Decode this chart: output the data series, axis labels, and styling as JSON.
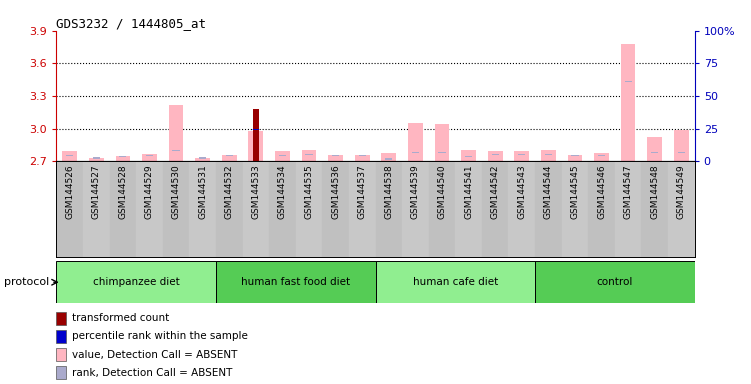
{
  "title": "GDS3232 / 1444805_at",
  "samples": [
    "GSM144526",
    "GSM144527",
    "GSM144528",
    "GSM144529",
    "GSM144530",
    "GSM144531",
    "GSM144532",
    "GSM144533",
    "GSM144534",
    "GSM144535",
    "GSM144536",
    "GSM144537",
    "GSM144538",
    "GSM144539",
    "GSM144540",
    "GSM144541",
    "GSM144542",
    "GSM144543",
    "GSM144544",
    "GSM144545",
    "GSM144546",
    "GSM144547",
    "GSM144548",
    "GSM144549"
  ],
  "pink_bar_values": [
    2.79,
    2.73,
    2.75,
    2.77,
    3.22,
    2.73,
    2.76,
    2.98,
    2.79,
    2.8,
    2.76,
    2.76,
    2.78,
    3.05,
    3.04,
    2.8,
    2.79,
    2.79,
    2.8,
    2.76,
    2.78,
    3.78,
    2.92,
    2.99
  ],
  "blue_rank_values": [
    2.745,
    2.725,
    2.735,
    2.745,
    2.795,
    2.725,
    2.745,
    2.985,
    2.745,
    2.755,
    2.745,
    2.745,
    2.715,
    2.775,
    2.775,
    2.735,
    2.755,
    2.755,
    2.755,
    2.745,
    2.745,
    3.425,
    2.775,
    2.775
  ],
  "red_bar_sample_idx": 7,
  "red_bar_value": 3.18,
  "blue_bar_value": 2.988,
  "groups": [
    {
      "label": "chimpanzee diet",
      "start": 0,
      "end": 6,
      "color": "#90EE90"
    },
    {
      "label": "human fast food diet",
      "start": 6,
      "end": 12,
      "color": "#55CC55"
    },
    {
      "label": "human cafe diet",
      "start": 12,
      "end": 18,
      "color": "#90EE90"
    },
    {
      "label": "control",
      "start": 18,
      "end": 24,
      "color": "#55CC55"
    }
  ],
  "ylim_left": [
    2.7,
    3.9
  ],
  "ylim_right": [
    0,
    100
  ],
  "yticks_left": [
    2.7,
    3.0,
    3.3,
    3.6,
    3.9
  ],
  "yticks_right": [
    0,
    25,
    50,
    75,
    100
  ],
  "grid_values": [
    3.0,
    3.3,
    3.6
  ],
  "left_color": "#CC0000",
  "right_color": "#0000BB",
  "pink_color": "#FFB6C1",
  "blue_rank_color": "#AAAACC",
  "red_bar_color": "#990000",
  "blue_bar_color": "#0000CC",
  "col_bg_color": "#C8C8C8",
  "legend_items": [
    {
      "color": "#990000",
      "label": "transformed count"
    },
    {
      "color": "#0000CC",
      "label": "percentile rank within the sample"
    },
    {
      "color": "#FFB6C1",
      "label": "value, Detection Call = ABSENT"
    },
    {
      "color": "#AAAACC",
      "label": "rank, Detection Call = ABSENT"
    }
  ]
}
